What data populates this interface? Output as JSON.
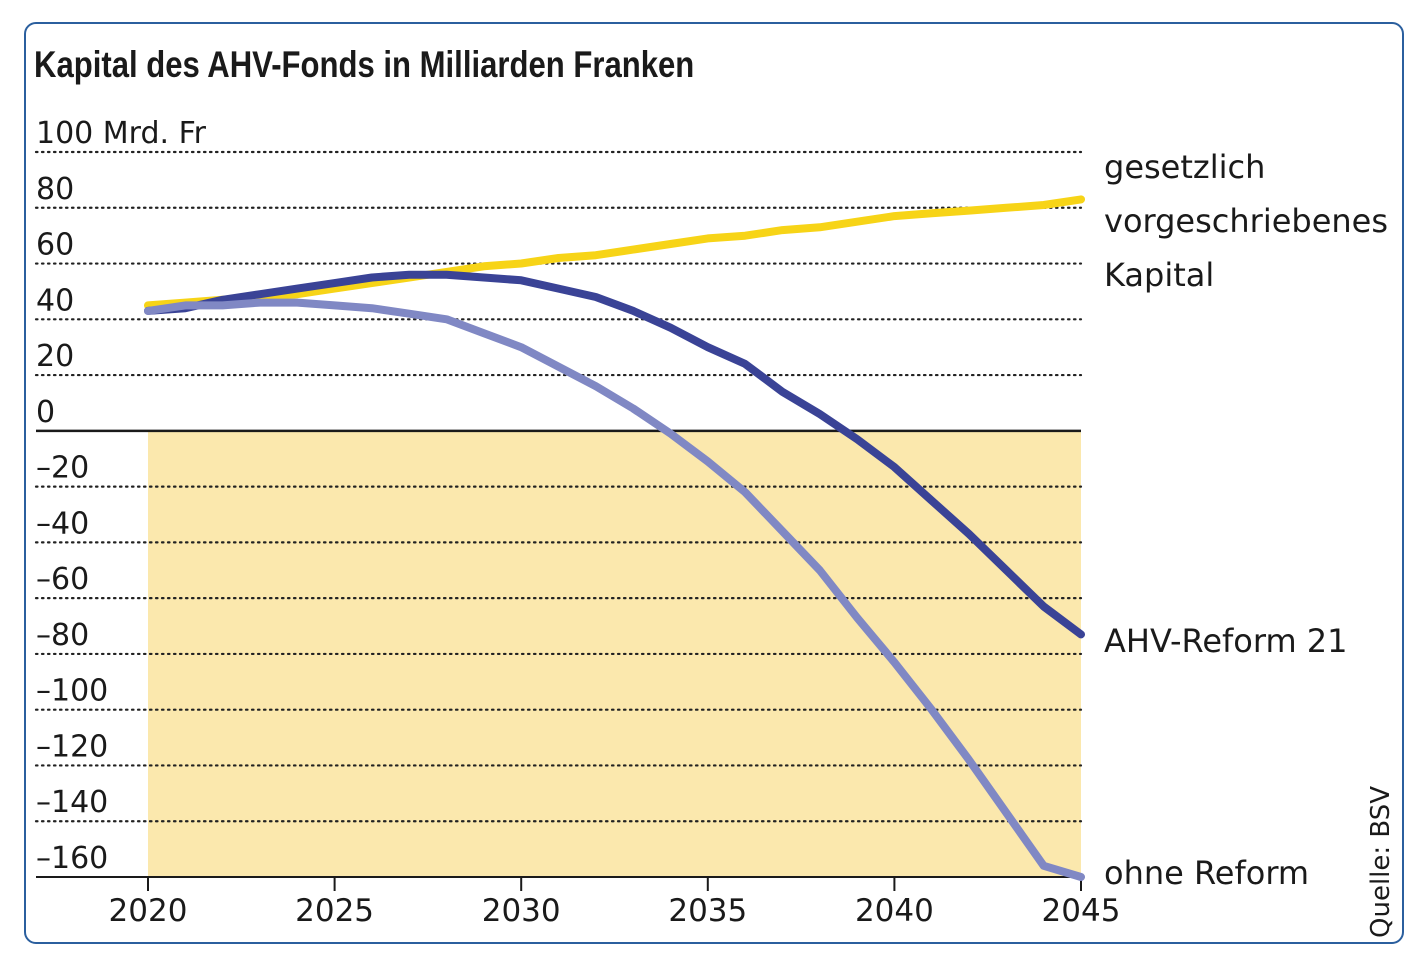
{
  "chart_data": {
    "type": "line",
    "title": "Kapital des AHV-Fonds in Milliarden Franken",
    "source": "Quelle: BSV",
    "x": [
      2020,
      2021,
      2022,
      2023,
      2024,
      2025,
      2026,
      2027,
      2028,
      2029,
      2030,
      2031,
      2032,
      2033,
      2034,
      2035,
      2036,
      2037,
      2038,
      2039,
      2040,
      2041,
      2042,
      2043,
      2044,
      2045
    ],
    "xlim": [
      2020,
      2045
    ],
    "ylim": [
      -160,
      100
    ],
    "x_ticks": [
      {
        "value": 2020,
        "label": "2020"
      },
      {
        "value": 2025,
        "label": "2025"
      },
      {
        "value": 2030,
        "label": "2030"
      },
      {
        "value": 2035,
        "label": "2035"
      },
      {
        "value": 2040,
        "label": "2040"
      },
      {
        "value": 2045,
        "label": "2045"
      }
    ],
    "y_ticks": [
      {
        "value": 100,
        "label": "100 Mrd. Fr"
      },
      {
        "value": 80,
        "label": "80"
      },
      {
        "value": 60,
        "label": "60"
      },
      {
        "value": 40,
        "label": "40"
      },
      {
        "value": 20,
        "label": "20"
      },
      {
        "value": 0,
        "label": "0"
      },
      {
        "value": -20,
        "label": "–20"
      },
      {
        "value": -40,
        "label": "–40"
      },
      {
        "value": -60,
        "label": "–60"
      },
      {
        "value": -80,
        "label": "–80"
      },
      {
        "value": -100,
        "label": "–100"
      },
      {
        "value": -120,
        "label": "–120"
      },
      {
        "value": -140,
        "label": "–140"
      },
      {
        "value": -160,
        "label": "–160"
      }
    ],
    "grid": "dotted horizontal",
    "negative_region_fill": "#fbe8ad",
    "zero_line_color": "#1a1a1a",
    "series": [
      {
        "name": "gesetzlich vorgeschriebenes Kapital",
        "label_lines": [
          "gesetzlich",
          "vorgeschriebenes",
          "Kapital"
        ],
        "color": "#f7d417",
        "values": [
          45,
          46,
          47,
          48,
          49,
          51,
          53,
          55,
          57,
          59,
          60,
          62,
          63,
          65,
          67,
          69,
          70,
          72,
          73,
          75,
          77,
          78,
          79,
          80,
          81,
          83
        ]
      },
      {
        "name": "AHV-Reform 21",
        "label_lines": [
          "AHV-Reform 21"
        ],
        "color": "#3a4396",
        "values": [
          43,
          44,
          47,
          49,
          51,
          53,
          55,
          56,
          56,
          55,
          54,
          51,
          48,
          43,
          37,
          30,
          24,
          14,
          6,
          -3,
          -13,
          -25,
          -37,
          -50,
          -63,
          -73
        ]
      },
      {
        "name": "ohne Reform",
        "label_lines": [
          "ohne Reform"
        ],
        "color": "#8088c4",
        "values": [
          43,
          45,
          45,
          46,
          46,
          45,
          44,
          42,
          40,
          35,
          30,
          23,
          16,
          8,
          -1,
          -11,
          -22,
          -36,
          -50,
          -67,
          -83,
          -100,
          -118,
          -137,
          -156,
          -160
        ]
      }
    ]
  }
}
